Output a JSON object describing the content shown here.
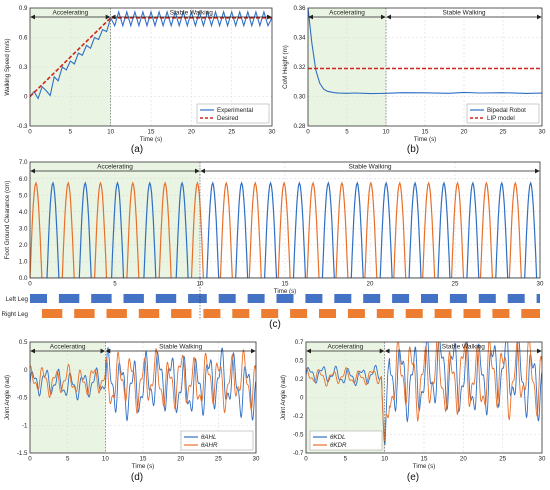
{
  "colors": {
    "blue": "#2f6fc4",
    "orange": "#e8702a",
    "red": "#d0261f",
    "shade": "#eaf4e2",
    "grid": "#dcdcdc",
    "axis": "#333333",
    "gait_blue": "#4472c4",
    "gait_orange": "#ed7d31"
  },
  "chart_data": [
    {
      "id": "a",
      "type": "line",
      "panel_label": "(a)",
      "xlabel": "Time (s)",
      "ylabel": "Walking Speed (m/s)",
      "xlim": [
        0,
        30
      ],
      "ylim": [
        -0.3,
        0.9
      ],
      "xticks": [
        "0",
        "5",
        "10",
        "15",
        "20",
        "25",
        "30"
      ],
      "yticks": [
        "-0.3",
        "0",
        "0.3",
        "0.6",
        "0.9"
      ],
      "phases": {
        "accelerating": "Accelerating",
        "stable": "Stable Walking",
        "switch_time": 10
      },
      "grid": true,
      "legend_position": "bottom-right",
      "series": [
        {
          "name": "Experimental",
          "color": "#2f6fc4",
          "style": "solid",
          "x": [
            0,
            0.5,
            1,
            1.5,
            2,
            2.5,
            3,
            3.5,
            4,
            4.5,
            5,
            5.5,
            6,
            6.5,
            7,
            7.5,
            8,
            8.5,
            9,
            9.5,
            10,
            10.5,
            11,
            11.5,
            12,
            12.5,
            13,
            13.5,
            14,
            14.5,
            15,
            15.5,
            16,
            16.5,
            17,
            17.5,
            18,
            18.5,
            19,
            19.5,
            20,
            20.5,
            21,
            21.5,
            22,
            22.5,
            23,
            23.5,
            24,
            24.5,
            25,
            25.5,
            26,
            26.5,
            27,
            27.5,
            28,
            28.5,
            29,
            29.5,
            30
          ],
          "y": [
            0,
            0.05,
            -0.02,
            0.1,
            0.06,
            0.01,
            0.2,
            0.16,
            0.3,
            0.27,
            0.36,
            0.33,
            0.44,
            0.42,
            0.52,
            0.49,
            0.6,
            0.58,
            0.68,
            0.66,
            0.8,
            0.72,
            0.86,
            0.72,
            0.86,
            0.72,
            0.86,
            0.72,
            0.86,
            0.72,
            0.86,
            0.72,
            0.86,
            0.72,
            0.86,
            0.72,
            0.86,
            0.72,
            0.86,
            0.72,
            0.86,
            0.72,
            0.86,
            0.72,
            0.86,
            0.72,
            0.86,
            0.72,
            0.86,
            0.72,
            0.86,
            0.72,
            0.86,
            0.72,
            0.86,
            0.72,
            0.86,
            0.72,
            0.86,
            0.72,
            0.8
          ]
        },
        {
          "name": "Desired",
          "color": "#d0261f",
          "style": "dashed",
          "x": [
            0,
            10,
            30
          ],
          "y": [
            0,
            0.8,
            0.8
          ]
        }
      ]
    },
    {
      "id": "b",
      "type": "line",
      "panel_label": "(b)",
      "xlabel": "Time (s)",
      "ylabel": "CoM Height (m)",
      "xlim": [
        0,
        30
      ],
      "ylim": [
        0.28,
        0.36
      ],
      "xticks": [
        "0",
        "5",
        "10",
        "15",
        "20",
        "25",
        "30"
      ],
      "yticks": [
        "0.28",
        "0.30",
        "0.32",
        "0.34",
        "0.36"
      ],
      "phases": {
        "accelerating": "Accelerating",
        "stable": "Stable Walking",
        "switch_time": 10
      },
      "grid": true,
      "legend_position": "bottom-right",
      "series": [
        {
          "name": "Bipedal Robot",
          "color": "#2f6fc4",
          "style": "solid",
          "x": [
            0,
            0.5,
            1,
            1.5,
            2,
            2.5,
            3,
            3.5,
            4,
            5,
            6,
            8,
            10,
            12,
            15,
            18,
            20,
            22,
            25,
            28,
            30
          ],
          "y": [
            0.36,
            0.336,
            0.318,
            0.309,
            0.305,
            0.3035,
            0.303,
            0.3025,
            0.3023,
            0.3022,
            0.3024,
            0.302,
            0.3022,
            0.3026,
            0.3025,
            0.3022,
            0.3028,
            0.3024,
            0.3026,
            0.3021,
            0.3023
          ]
        },
        {
          "name": "LIP model",
          "color": "#d0261f",
          "style": "dashed",
          "x": [
            0,
            30
          ],
          "y": [
            0.319,
            0.319
          ]
        }
      ]
    },
    {
      "id": "c",
      "type": "line",
      "panel_label": "(c)",
      "xlabel": "Time (s)",
      "ylabel": "Foot Ground Clearance (cm)",
      "xlim": [
        0,
        30
      ],
      "ylim": [
        0,
        7
      ],
      "xticks": [
        "0",
        "5",
        "10",
        "15",
        "20",
        "25",
        "30"
      ],
      "yticks": [
        "0.0",
        "1.0",
        "2.0",
        "3.0",
        "4.0",
        "5.0",
        "6.0",
        "7.0"
      ],
      "phases": {
        "accelerating": "Accelerating",
        "stable": "Stable Walking",
        "switch_time": 10
      },
      "grid": true,
      "swing_peak_cm": 6.0,
      "swing_duration_s": 0.7,
      "blue_swing_starts_s": [
        1.0,
        2.9,
        4.8,
        6.7,
        8.6,
        10.4,
        12.1,
        13.8,
        15.5,
        17.2,
        18.9,
        20.6,
        22.3,
        24.0,
        25.7,
        27.4,
        29.1
      ],
      "orange_swing_starts_s": [
        0.0,
        1.9,
        3.8,
        5.7,
        7.6,
        9.5,
        11.2,
        12.9,
        14.6,
        16.3,
        18.0,
        19.7,
        21.4,
        23.1,
        24.8,
        26.5,
        28.2
      ],
      "gait_phases": [
        {
          "name": "Left Leg",
          "color": "#4472c4",
          "stance_s": [
            [
              0,
              1.0
            ],
            [
              1.7,
              2.9
            ],
            [
              3.6,
              4.8
            ],
            [
              5.5,
              6.7
            ],
            [
              7.4,
              8.6
            ],
            [
              9.3,
              10.4
            ],
            [
              11.1,
              12.1
            ],
            [
              12.8,
              13.8
            ],
            [
              14.5,
              15.5
            ],
            [
              16.2,
              17.2
            ],
            [
              17.9,
              18.9
            ],
            [
              19.6,
              20.6
            ],
            [
              21.3,
              22.3
            ],
            [
              23.0,
              24.0
            ],
            [
              24.7,
              25.7
            ],
            [
              26.4,
              27.4
            ],
            [
              28.1,
              29.1
            ],
            [
              29.8,
              30
            ]
          ]
        },
        {
          "name": "Right Leg",
          "color": "#ed7d31",
          "stance_s": [
            [
              0.7,
              1.9
            ],
            [
              2.6,
              3.8
            ],
            [
              4.5,
              5.7
            ],
            [
              6.4,
              7.6
            ],
            [
              8.3,
              9.5
            ],
            [
              10.2,
              11.2
            ],
            [
              11.9,
              12.9
            ],
            [
              13.6,
              14.6
            ],
            [
              15.3,
              16.3
            ],
            [
              17.0,
              18.0
            ],
            [
              18.7,
              19.7
            ],
            [
              20.4,
              21.4
            ],
            [
              22.1,
              23.1
            ],
            [
              23.8,
              24.8
            ],
            [
              25.5,
              26.5
            ],
            [
              27.2,
              28.2
            ],
            [
              28.9,
              30
            ]
          ]
        }
      ],
      "gait_labels": {
        "left": "Left Leg",
        "right": "Right Leg"
      }
    },
    {
      "id": "d",
      "type": "line",
      "panel_label": "(d)",
      "xlabel": "Time (s)",
      "ylabel": "Joint Angle (rad)",
      "xlim": [
        0,
        30
      ],
      "ylim": [
        -1.5,
        0.5
      ],
      "xticks": [
        "0",
        "5",
        "10",
        "15",
        "20",
        "25",
        "30"
      ],
      "yticks": [
        "-1.5",
        "-1",
        "-0.5",
        "0",
        "0.5"
      ],
      "phases": {
        "accelerating": "Accelerating",
        "stable": "Stable Walking",
        "switch_time": 10
      },
      "grid": true,
      "legend_position": "bottom-right",
      "series": [
        {
          "name": "θAHL",
          "color": "#2f6fc4",
          "style": "solid",
          "base": -0.25,
          "amp_accel": 0.18,
          "amp_stable": 0.4,
          "freq": 0.6
        },
        {
          "name": "θAHR",
          "color": "#e8702a",
          "style": "solid",
          "base": -0.2,
          "amp_accel": 0.18,
          "amp_stable": 0.35,
          "freq": 0.6
        }
      ]
    },
    {
      "id": "e",
      "type": "line",
      "panel_label": "(e)",
      "xlabel": "Time (s)",
      "ylabel": "Joint Angle (rad)",
      "xlim": [
        0,
        30
      ],
      "ylim": [
        -0.7,
        0.7
      ],
      "xticks": [
        "0",
        "5",
        "10",
        "15",
        "20",
        "25",
        "30"
      ],
      "yticks": [
        "-0.7",
        "-0.5",
        "-0.2",
        "0",
        "0.2",
        "0.5",
        "0.7"
      ],
      "phases": {
        "accelerating": "Accelerating",
        "stable": "Stable Walking",
        "switch_time": 10
      },
      "grid": true,
      "legend_position": "bottom-left",
      "series": [
        {
          "name": "θKDL",
          "color": "#2f6fc4",
          "style": "solid",
          "base": 0.28,
          "amp_accel": 0.08,
          "amp_stable": 0.35,
          "freq": 0.6
        },
        {
          "name": "θKDR",
          "color": "#e8702a",
          "style": "solid",
          "base": 0.26,
          "amp_accel": 0.07,
          "amp_stable": 0.33,
          "freq": 0.6
        }
      ]
    }
  ]
}
